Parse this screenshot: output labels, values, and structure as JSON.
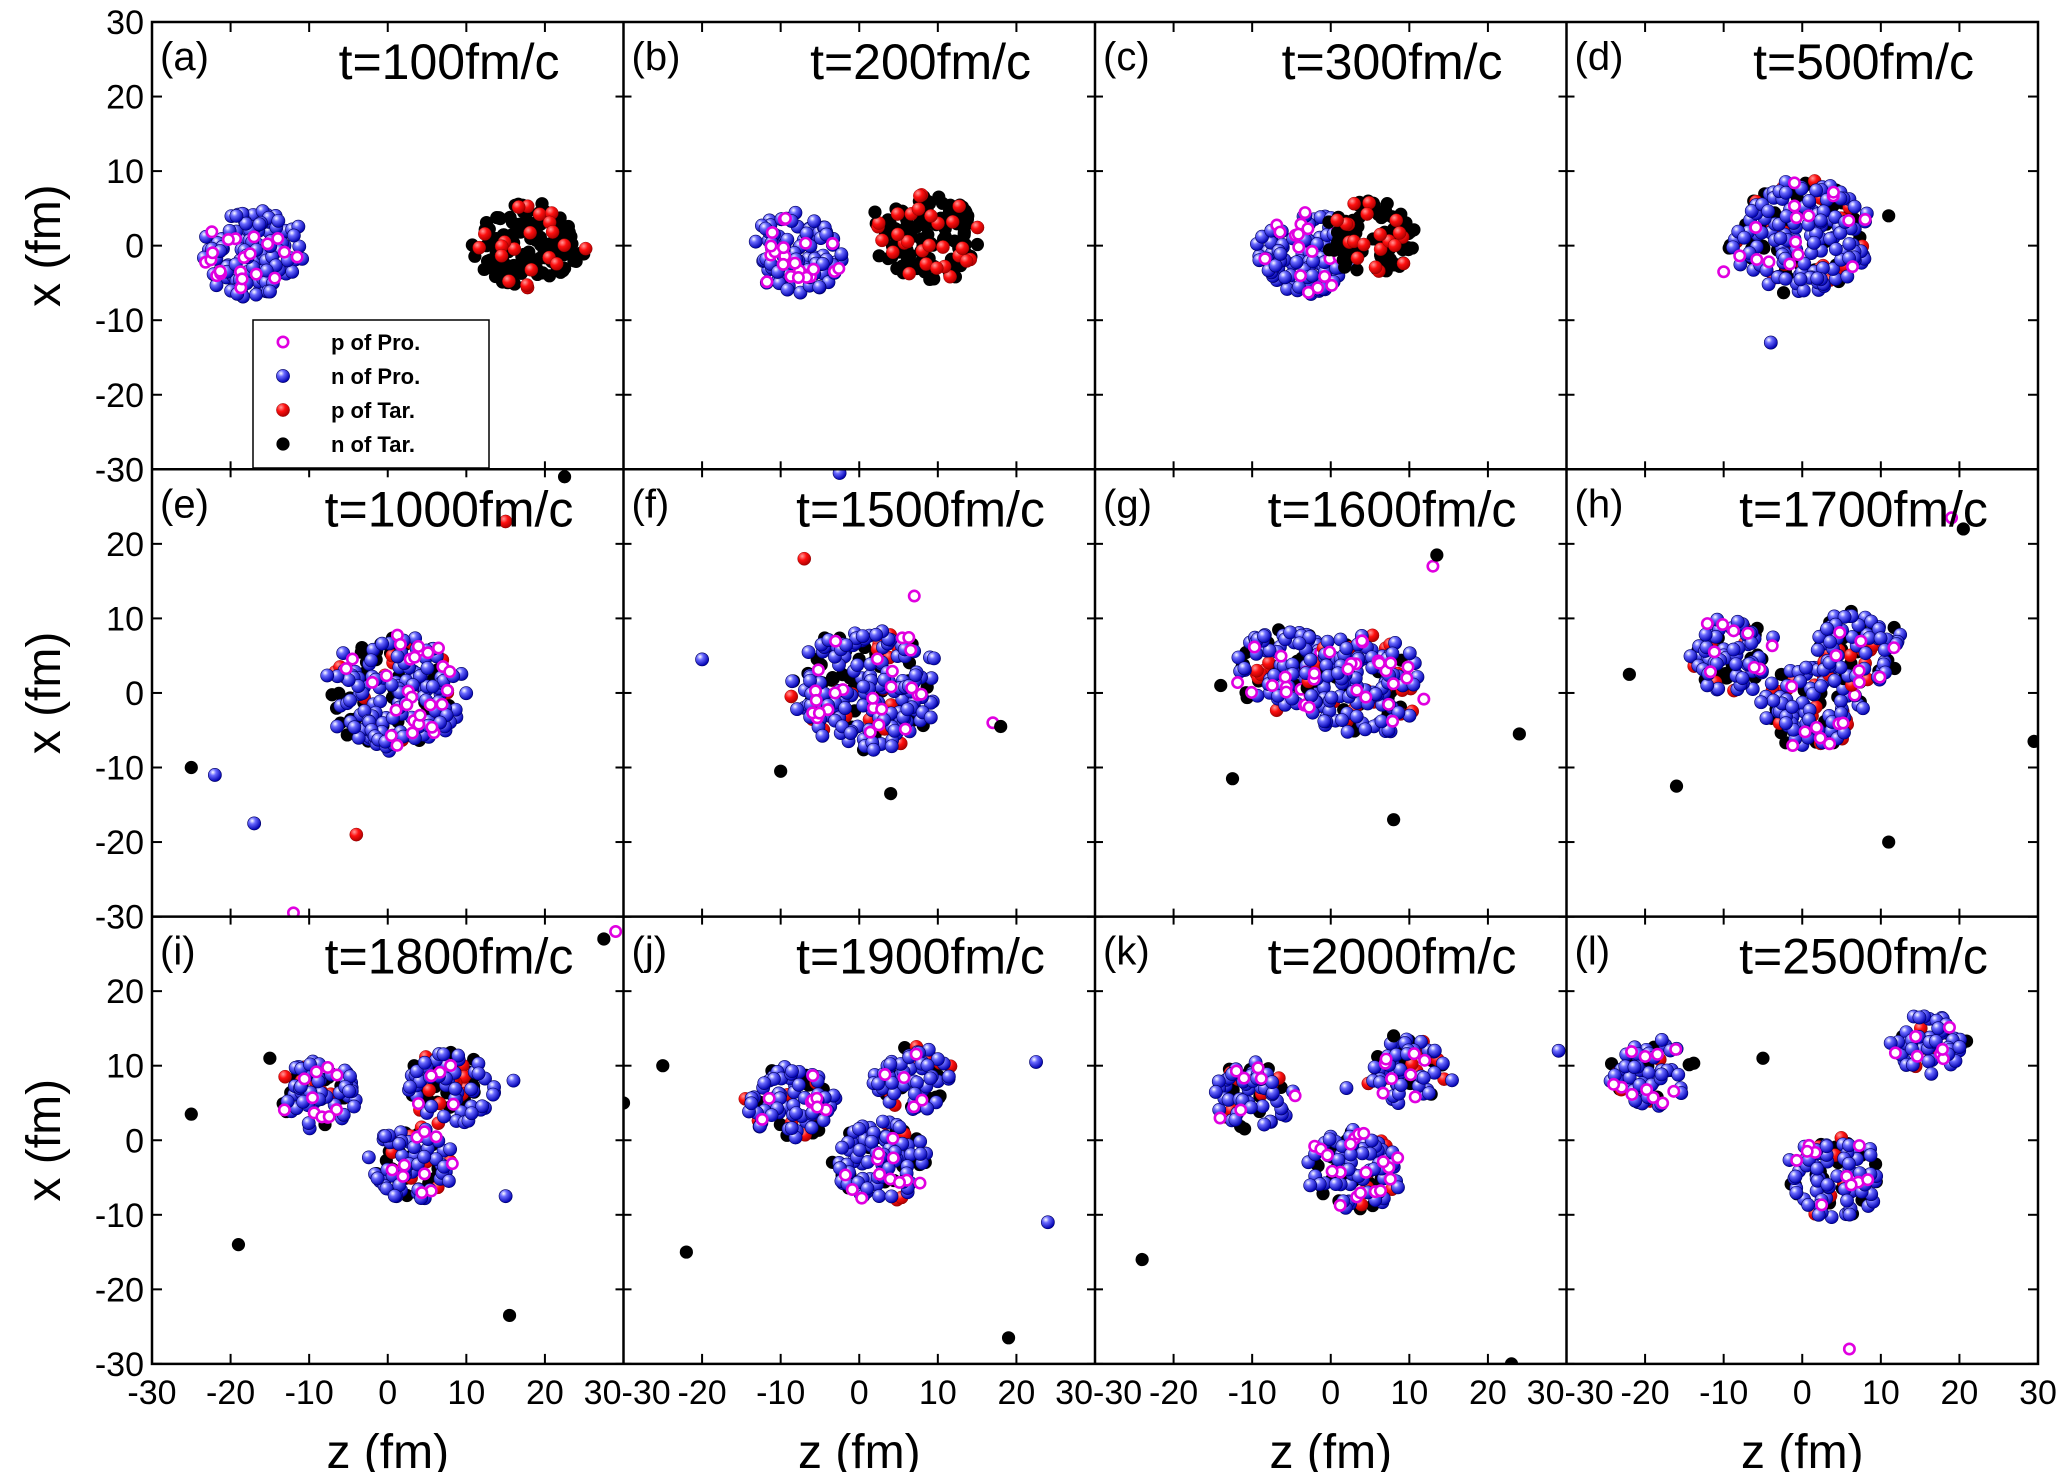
{
  "chart_data": {
    "type": "scatter",
    "layout": "3x4 grid of panels",
    "xlabel": "z (fm)",
    "ylabel": "x (fm)",
    "xlim": [
      -30,
      30
    ],
    "ylim": [
      -30,
      30
    ],
    "xticks": [
      "-30",
      "-20",
      "-10",
      "0",
      "10",
      "20",
      "30"
    ],
    "yticks": [
      "30",
      "20",
      "10",
      "0",
      "-10",
      "-20",
      "-30"
    ],
    "species": [
      {
        "name": "p of Pro.",
        "style": "open-circle",
        "color": "#e000e0"
      },
      {
        "name": "n of Pro.",
        "style": "filled-circle",
        "color": "#2020e0"
      },
      {
        "name": "p of Tar.",
        "style": "filled-circle",
        "color": "#ff1010"
      },
      {
        "name": "n of Tar.",
        "style": "filled-circle",
        "color": "#000000"
      }
    ],
    "legend": {
      "location": "panel a, lower left-center"
    },
    "panels": [
      {
        "letter": "(a)",
        "time": "t=100fm/c",
        "clusters": [
          {
            "z": -17,
            "x": -1,
            "r": 6.5,
            "mix": "pro"
          },
          {
            "z": 18,
            "x": 0,
            "r": 6.5,
            "mix": "tar"
          }
        ],
        "singles": []
      },
      {
        "letter": "(b)",
        "time": "t=200fm/c",
        "clusters": [
          {
            "z": -8,
            "x": -1,
            "r": 6,
            "mix": "pro"
          },
          {
            "z": 9,
            "x": 1,
            "r": 6.5,
            "mix": "tar"
          }
        ],
        "singles": [
          {
            "z": 2,
            "x": 4.5,
            "s": 3
          }
        ]
      },
      {
        "letter": "(c)",
        "time": "t=300fm/c",
        "clusters": [
          {
            "z": -3,
            "x": -1,
            "r": 6,
            "mix": "pro"
          },
          {
            "z": 5,
            "x": 1,
            "r": 5.5,
            "mix": "tar"
          }
        ],
        "singles": []
      },
      {
        "letter": "(d)",
        "time": "t=500fm/c",
        "clusters": [
          {
            "z": 0,
            "x": 1,
            "r": 8.5,
            "mix": "mixed"
          }
        ],
        "singles": [
          {
            "z": -4,
            "x": -13,
            "s": 1
          },
          {
            "z": 11,
            "x": 4,
            "s": 3
          },
          {
            "z": -10,
            "x": -3.5,
            "s": 0
          }
        ]
      },
      {
        "letter": "(e)",
        "time": "t=1000fm/c",
        "clusters": [
          {
            "z": 1,
            "x": 0,
            "r": 8.5,
            "mix": "mixed"
          }
        ],
        "singles": [
          {
            "z": -25,
            "x": -10,
            "s": 3
          },
          {
            "z": -22,
            "x": -11,
            "s": 1
          },
          {
            "z": -17,
            "x": -17.5,
            "s": 1
          },
          {
            "z": -4,
            "x": -19,
            "s": 2
          },
          {
            "z": -12,
            "x": -29.5,
            "s": 0
          },
          {
            "z": 15,
            "x": 23,
            "s": 2
          },
          {
            "z": 22.5,
            "x": 29,
            "s": 3
          }
        ]
      },
      {
        "letter": "(f)",
        "time": "t=1500fm/c",
        "clusters": [
          {
            "z": 1,
            "x": 0.5,
            "r": 9,
            "mix": "mixed"
          }
        ],
        "singles": [
          {
            "z": -20,
            "x": 4.5,
            "s": 1
          },
          {
            "z": -10,
            "x": -10.5,
            "s": 3
          },
          {
            "z": -7,
            "x": 18,
            "s": 2
          },
          {
            "z": 4,
            "x": -13.5,
            "s": 3
          },
          {
            "z": 17,
            "x": -4,
            "s": 0
          },
          {
            "z": 18,
            "x": -4.5,
            "s": 3
          },
          {
            "z": 7,
            "x": 13,
            "s": 0
          },
          {
            "z": -2.5,
            "x": 29.5,
            "s": 1
          }
        ]
      },
      {
        "letter": "(g)",
        "time": "t=1600fm/c",
        "clusters": [
          {
            "z": -6,
            "x": 3,
            "r": 6,
            "mix": "mixed"
          },
          {
            "z": 4,
            "x": 1,
            "r": 7.5,
            "mix": "mixed"
          }
        ],
        "singles": [
          {
            "z": -14,
            "x": 1,
            "s": 3
          },
          {
            "z": -12.5,
            "x": -11.5,
            "s": 3
          },
          {
            "z": 8,
            "x": -17,
            "s": 3
          },
          {
            "z": 13,
            "x": 17,
            "s": 0
          },
          {
            "z": 13.5,
            "x": 18.5,
            "s": 3
          },
          {
            "z": 24,
            "x": -5.5,
            "s": 3
          }
        ]
      },
      {
        "letter": "(h)",
        "time": "t=1700fm/c",
        "clusters": [
          {
            "z": -9,
            "x": 5,
            "r": 5.5,
            "mix": "mixed"
          },
          {
            "z": 1,
            "x": -2,
            "r": 6,
            "mix": "mixed"
          },
          {
            "z": 7,
            "x": 6,
            "r": 5.5,
            "mix": "mixed"
          }
        ],
        "singles": [
          {
            "z": -22,
            "x": 2.5,
            "s": 3
          },
          {
            "z": -16,
            "x": -12.5,
            "s": 3
          },
          {
            "z": 11,
            "x": -20,
            "s": 3
          },
          {
            "z": 19,
            "x": 23.5,
            "s": 0
          },
          {
            "z": 20.5,
            "x": 22,
            "s": 3
          },
          {
            "z": 29.5,
            "x": -6.5,
            "s": 3
          }
        ]
      },
      {
        "letter": "(i)",
        "time": "t=1800fm/c",
        "clusters": [
          {
            "z": -9,
            "x": 6,
            "r": 5,
            "mix": "mixed"
          },
          {
            "z": 8,
            "x": 7,
            "r": 5.5,
            "mix": "mixed"
          },
          {
            "z": 3,
            "x": -3,
            "r": 5.5,
            "mix": "mixed"
          }
        ],
        "singles": [
          {
            "z": -25,
            "x": 3.5,
            "s": 3
          },
          {
            "z": -15,
            "x": 11,
            "s": 3
          },
          {
            "z": -19,
            "x": -14,
            "s": 3
          },
          {
            "z": 15,
            "x": -7.5,
            "s": 1
          },
          {
            "z": 16,
            "x": 8,
            "s": 1
          },
          {
            "z": 15.5,
            "x": -23.5,
            "s": 3
          },
          {
            "z": 27.5,
            "x": 27,
            "s": 3
          },
          {
            "z": 29,
            "x": 28,
            "s": 0
          }
        ]
      },
      {
        "letter": "(j)",
        "time": "t=1900fm/c",
        "clusters": [
          {
            "z": -9,
            "x": 5,
            "r": 5.5,
            "mix": "mixed"
          },
          {
            "z": 7,
            "x": 8,
            "r": 5,
            "mix": "mixed"
          },
          {
            "z": 3,
            "x": -3,
            "r": 6,
            "mix": "mixed"
          }
        ],
        "singles": [
          {
            "z": -25,
            "x": 10,
            "s": 3
          },
          {
            "z": -22,
            "x": -15,
            "s": 3
          },
          {
            "z": -30,
            "x": 5,
            "s": 3
          },
          {
            "z": 22.5,
            "x": 10.5,
            "s": 1
          },
          {
            "z": 24,
            "x": -11,
            "s": 1
          },
          {
            "z": 19,
            "x": -26.5,
            "s": 3
          }
        ]
      },
      {
        "letter": "(k)",
        "time": "t=2000fm/c",
        "clusters": [
          {
            "z": -10,
            "x": 6,
            "r": 5,
            "mix": "mixed"
          },
          {
            "z": 10,
            "x": 9,
            "r": 5,
            "mix": "mixed"
          },
          {
            "z": 3,
            "x": -4,
            "r": 6,
            "mix": "mixed"
          }
        ],
        "singles": [
          {
            "z": -24,
            "x": -16,
            "s": 3
          },
          {
            "z": 29,
            "x": 12,
            "s": 1
          },
          {
            "z": 23,
            "x": -30,
            "s": 3
          },
          {
            "z": 8,
            "x": 14,
            "s": 3
          },
          {
            "z": 2,
            "x": 7,
            "s": 1
          }
        ]
      },
      {
        "letter": "(l)",
        "time": "t=2500fm/c",
        "clusters": [
          {
            "z": -19,
            "x": 9,
            "r": 5,
            "mix": "mixed"
          },
          {
            "z": 16,
            "x": 13,
            "r": 4.5,
            "mix": "mixed"
          },
          {
            "z": 4,
            "x": -5,
            "r": 6,
            "mix": "mixed"
          }
        ],
        "singles": [
          {
            "z": -5,
            "x": 11,
            "s": 3
          },
          {
            "z": -24,
            "x": 7.5,
            "s": 0
          },
          {
            "z": 6,
            "x": -28,
            "s": 0
          },
          {
            "z": 20,
            "x": 12.5,
            "s": 1
          }
        ]
      }
    ]
  }
}
